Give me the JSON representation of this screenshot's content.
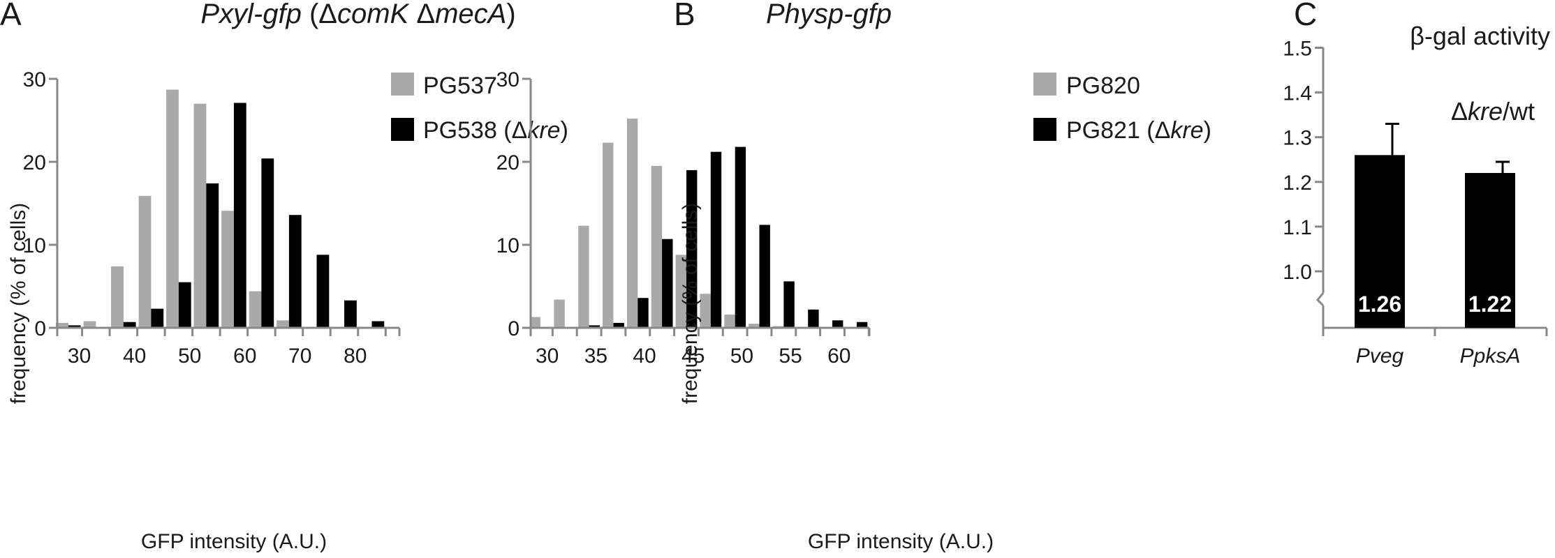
{
  "colors": {
    "gray": "#a9a9a9",
    "black": "#000000",
    "axis": "#888888"
  },
  "panels": {
    "a": {
      "letter": "A",
      "title_pre": "Pxyl-gfp",
      "title_mid": " (Δ",
      "title_g1": "comK",
      "title_sp": " Δ",
      "title_g2": "mecA",
      "title_end": ")",
      "legend_gray": "PG537",
      "legend_black_pre": "PG538 (Δ",
      "legend_black_it": "kre",
      "legend_black_end": ")"
    },
    "b": {
      "letter": "B",
      "title": "Physp-gfp",
      "legend_gray": "PG820",
      "legend_black_pre": "PG821 (Δ",
      "legend_black_it": "kre",
      "legend_black_end": ")"
    },
    "c": {
      "letter": "C",
      "title_line1": "β-gal activity",
      "title_delta": "Δ",
      "title_it": "kre",
      "title_end": "/wt"
    }
  },
  "chart_data": [
    {
      "type": "bar",
      "panel": "A",
      "xlabel": "GFP intensity (A.U.)",
      "ylabel": "frequency (% of cells)",
      "x_ticks": [
        30,
        40,
        50,
        60,
        70,
        80
      ],
      "y_ticks": [
        0,
        10,
        20,
        30
      ],
      "xlim": [
        26,
        88
      ],
      "ylim": [
        0,
        30
      ],
      "bin_width": 5,
      "bins": [
        28,
        33,
        38,
        43,
        48,
        53,
        58,
        63,
        68,
        73,
        78,
        83,
        88
      ],
      "series": [
        {
          "name": "PG537",
          "color": "gray",
          "values": [
            0.6,
            0.8,
            7.4,
            15.9,
            28.7,
            27.0,
            14.1,
            4.4,
            0.9,
            0,
            0,
            0,
            0
          ]
        },
        {
          "name": "PG538 (Δkre)",
          "color": "black",
          "values": [
            0.3,
            0,
            0.7,
            2.3,
            5.5,
            17.4,
            27.1,
            20.4,
            13.6,
            8.8,
            3.3,
            0.8,
            0
          ]
        }
      ]
    },
    {
      "type": "bar",
      "panel": "B",
      "xlabel": "GFP intensity (A.U.)",
      "ylabel": "frequency (% of cells)",
      "x_ticks": [
        30,
        35,
        40,
        45,
        50,
        55,
        60
      ],
      "y_ticks": [
        0,
        10,
        20,
        30
      ],
      "xlim": [
        28.3,
        63.1
      ],
      "ylim": [
        0,
        30
      ],
      "bin_width": 2.5,
      "bins": [
        29.3,
        31.8,
        34.3,
        36.8,
        39.3,
        41.8,
        44.3,
        46.8,
        49.3,
        51.8,
        54.3,
        56.8,
        59.3,
        61.8
      ],
      "series": [
        {
          "name": "PG820",
          "color": "gray",
          "values": [
            1.3,
            3.4,
            12.3,
            22.3,
            25.2,
            19.5,
            8.8,
            4.1,
            1.6,
            0.5,
            0.2,
            0,
            0,
            0
          ]
        },
        {
          "name": "PG821 (Δkre)",
          "color": "black",
          "values": [
            0,
            0,
            0.3,
            0.6,
            3.6,
            10.7,
            19.0,
            21.2,
            21.8,
            12.4,
            5.6,
            2.2,
            0.9,
            0.7
          ]
        }
      ]
    },
    {
      "type": "bar",
      "panel": "C",
      "title": "β-gal activity",
      "ylim": [
        0.9,
        1.5
      ],
      "y_ticks": [
        "1.0",
        "1.1",
        "1.2",
        "1.3",
        "1.4",
        "1.5"
      ],
      "categories": [
        "Pveg",
        "PpksA"
      ],
      "values": [
        1.26,
        1.22
      ],
      "value_labels": [
        "1.26",
        "1.22"
      ],
      "errors": [
        0.07,
        0.025
      ],
      "axis_break": true
    }
  ]
}
